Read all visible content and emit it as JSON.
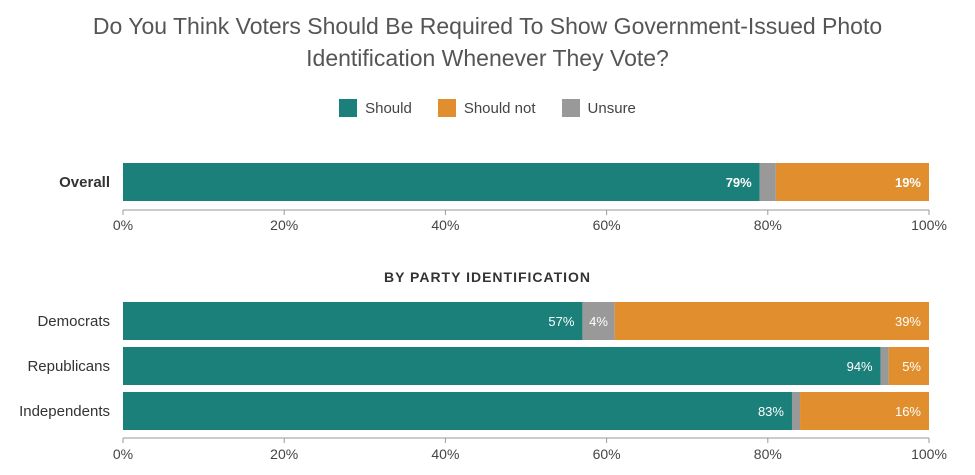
{
  "title_line1": "Do You Think Voters Should Be Required To Show Government-Issued Photo",
  "title_line2": "Identification Whenever They Vote?",
  "section_title": "BY PARTY IDENTIFICATION",
  "colors": {
    "should": "#1b7f7a",
    "should_not": "#e08e2e",
    "unsure": "#999999"
  },
  "chart_data": [
    {
      "type": "bar",
      "orientation": "horizontal",
      "stacked": true,
      "categories": [
        "Overall"
      ],
      "series": [
        {
          "name": "Should",
          "values": [
            79
          ]
        },
        {
          "name": "Unsure",
          "values": [
            2
          ]
        },
        {
          "name": "Should not",
          "values": [
            19
          ]
        }
      ],
      "value_labels": [
        [
          "79%",
          "",
          "19%"
        ]
      ],
      "xlim": [
        0,
        100
      ],
      "ticks": [
        "0%",
        "20%",
        "40%",
        "60%",
        "80%",
        "100%"
      ]
    },
    {
      "type": "bar",
      "orientation": "horizontal",
      "stacked": true,
      "title": "BY PARTY IDENTIFICATION",
      "categories": [
        "Democrats",
        "Republicans",
        "Independents"
      ],
      "series": [
        {
          "name": "Should",
          "values": [
            57,
            94,
            83
          ]
        },
        {
          "name": "Unsure",
          "values": [
            4,
            1,
            1
          ]
        },
        {
          "name": "Should not",
          "values": [
            39,
            5,
            16
          ]
        }
      ],
      "value_labels": [
        [
          "57%",
          "4%",
          "39%"
        ],
        [
          "94%",
          "",
          "5%"
        ],
        [
          "83%",
          "",
          "16%"
        ]
      ],
      "xlim": [
        0,
        100
      ],
      "ticks": [
        "0%",
        "20%",
        "40%",
        "60%",
        "80%",
        "100%"
      ]
    }
  ],
  "legend": [
    {
      "label": "Should",
      "color": "#1b7f7a"
    },
    {
      "label": "Should not",
      "color": "#e08e2e"
    },
    {
      "label": "Unsure",
      "color": "#999999"
    }
  ]
}
